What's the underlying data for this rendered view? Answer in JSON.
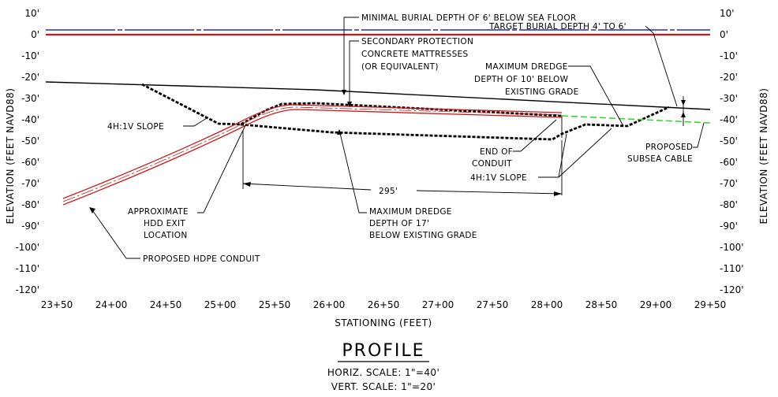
{
  "profile": {
    "title": "PROFILE",
    "horiz_scale": "HORIZ. SCALE:  1\"=40'",
    "vert_scale": "VERT. SCALE:  1\"=20'"
  },
  "axes": {
    "y_label": "ELEVATION  (FEET  NAVD88)",
    "x_label": "STATIONING  (FEET)",
    "y_ticks": [
      "10'",
      "0'",
      "-10'",
      "-20'",
      "-30'",
      "-40'",
      "-50'",
      "-60'",
      "-70'",
      "-80'",
      "-90'",
      "-100'",
      "-110'",
      "-120'"
    ],
    "y_tick_values": [
      10,
      0,
      -10,
      -20,
      -30,
      -40,
      -50,
      -60,
      -70,
      -80,
      -90,
      -100,
      -110,
      -120
    ],
    "x_ticks": [
      "23+50",
      "24+00",
      "24+50",
      "25+00",
      "25+50",
      "26+00",
      "26+50",
      "27+00",
      "27+50",
      "28+00",
      "28+50",
      "29+00",
      "29+50"
    ],
    "x_range_ft": [
      2350,
      2950
    ],
    "y_range_ft": [
      -120,
      10
    ]
  },
  "annotations": {
    "minimal_burial": "MINIMAL BURIAL DEPTH OF 6' BELOW SEA FLOOR",
    "secondary_protection": [
      "SECONDARY PROTECTION",
      "CONCRETE MATTRESSES",
      "(OR EQUIVALENT)"
    ],
    "target_burial": "TARGET BURIAL DEPTH 4' TO 6'",
    "max_dredge_10": [
      "MAXIMUM DREDGE",
      "DEPTH OF 10' BELOW",
      "EXISTING GRADE"
    ],
    "slope_left": "4H:1V SLOPE",
    "slope_right": "4H:1V SLOPE",
    "end_of_conduit": [
      "END OF",
      "CONDUIT"
    ],
    "proposed_subsea_cable": [
      "PROPOSED",
      "SUBSEA CABLE"
    ],
    "dimension_295": "295'",
    "hdd_exit": [
      "APPROXIMATE",
      "HDD EXIT",
      "LOCATION"
    ],
    "max_dredge_17": [
      "MAXIMUM DREDGE",
      "DEPTH OF 17'",
      "BELOW EXISTING GRADE"
    ],
    "proposed_hdpe": "PROPOSED HDPE CONDUIT"
  },
  "colors": {
    "blue_line": "#1f2fcc",
    "red_line": "#d11818",
    "cable": "#22dd22",
    "linework": "#000000"
  }
}
